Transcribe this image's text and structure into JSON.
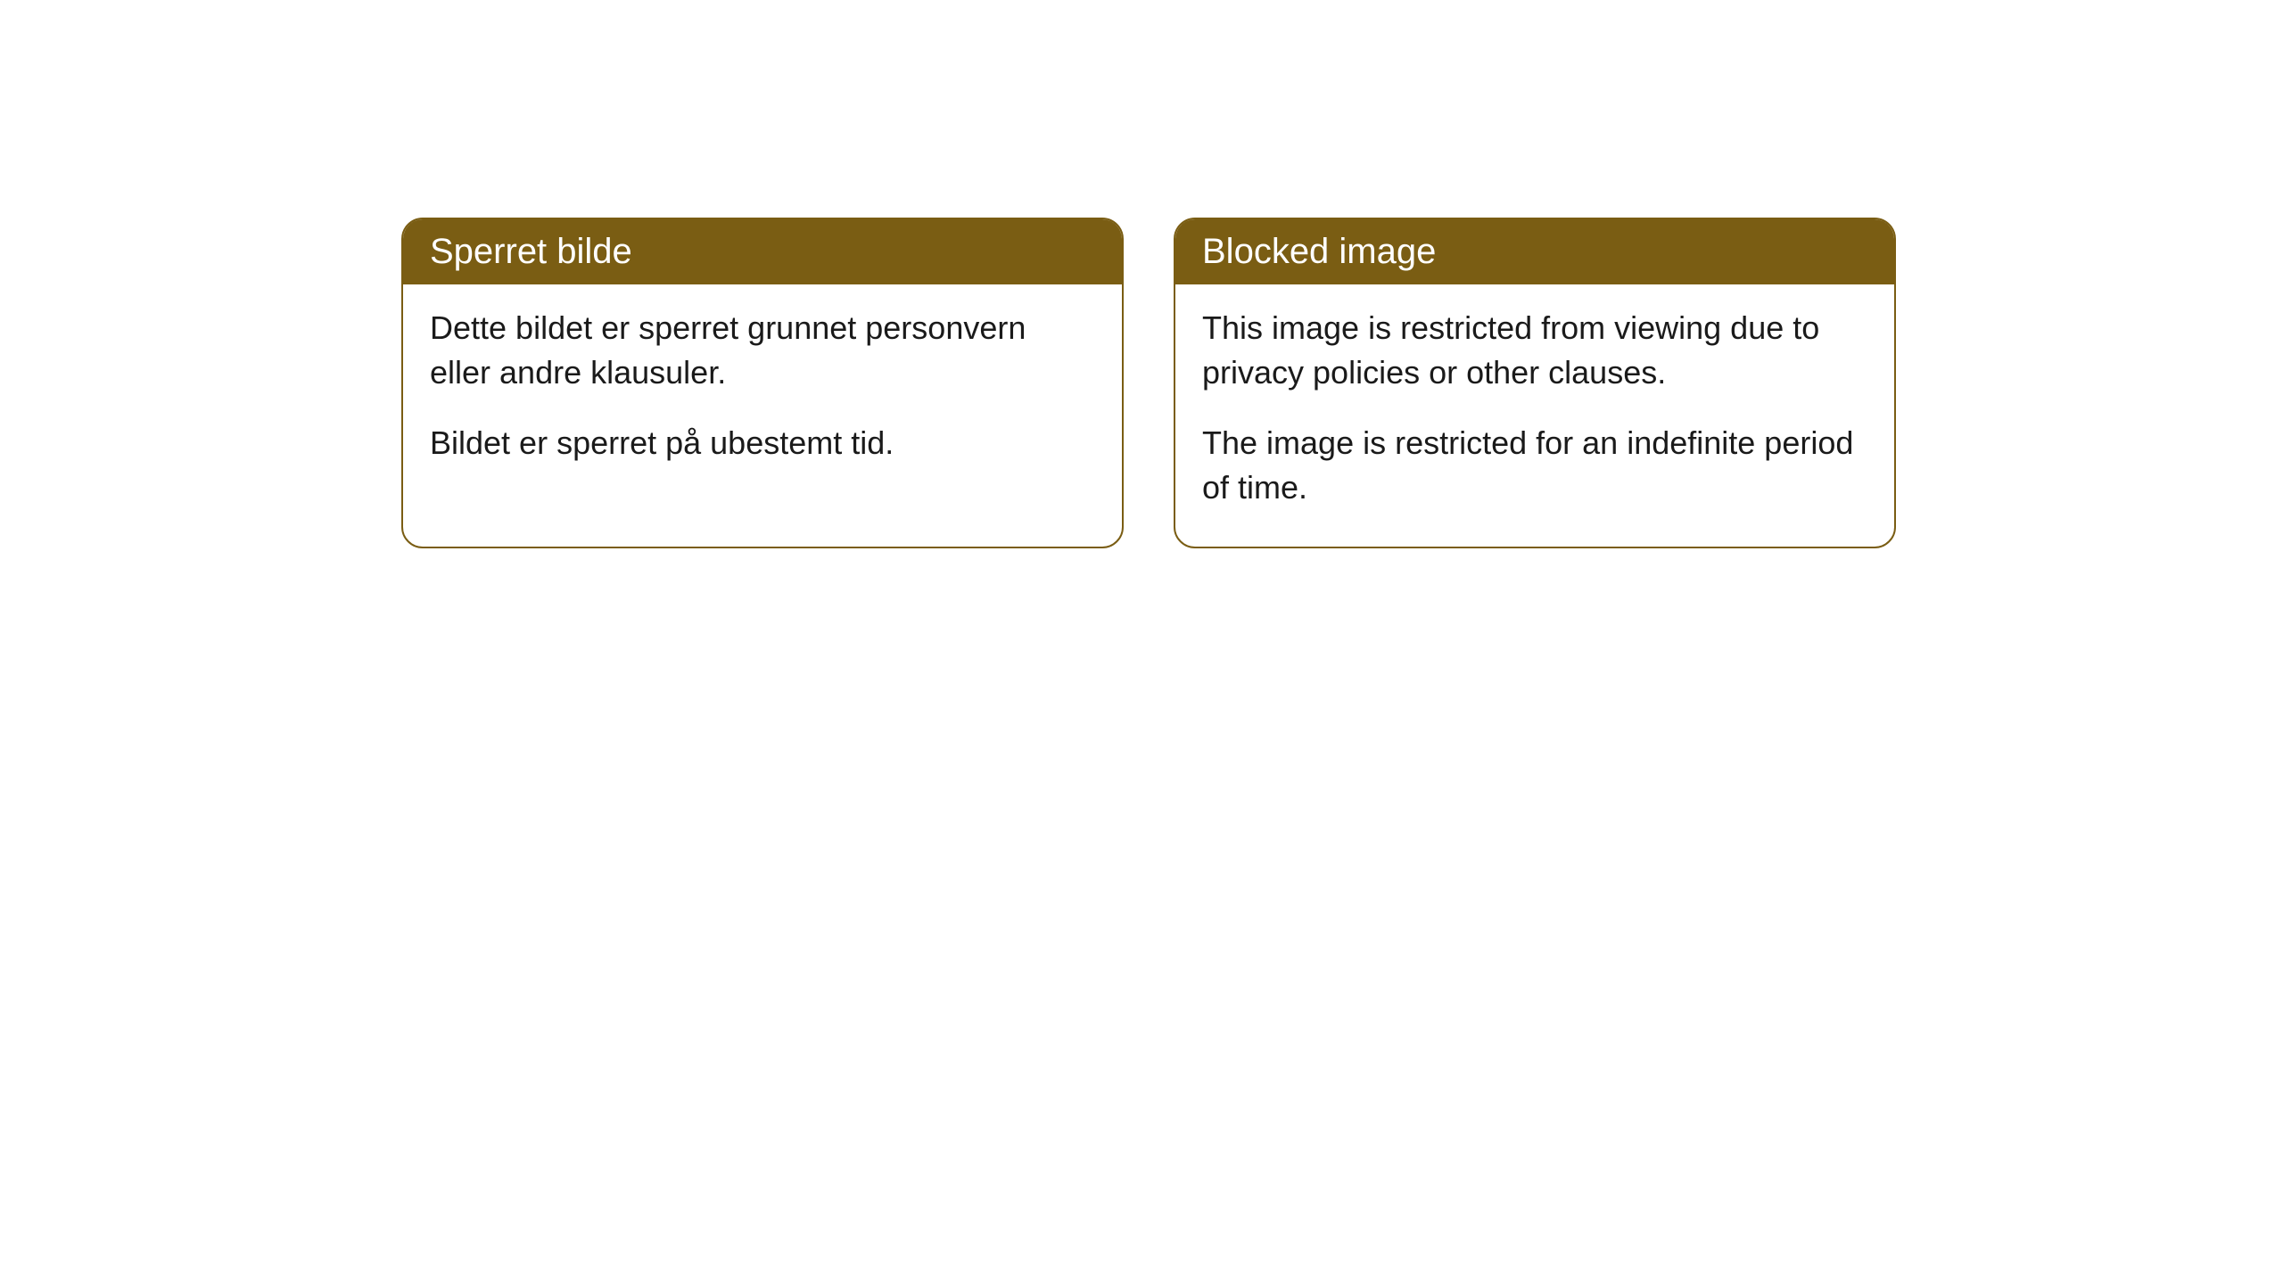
{
  "cards": [
    {
      "title": "Sperret bilde",
      "paragraph1": "Dette bildet er sperret grunnet personvern eller andre klausuler.",
      "paragraph2": "Bildet er sperret på ubestemt tid."
    },
    {
      "title": "Blocked image",
      "paragraph1": "This image is restricted from viewing due to privacy policies or other clauses.",
      "paragraph2": "The image is restricted for an indefinite period of time."
    }
  ],
  "style": {
    "header_background": "#7a5d13",
    "header_text_color": "#ffffff",
    "border_color": "#7a5d13",
    "body_background": "#ffffff",
    "body_text_color": "#1a1a1a",
    "border_radius": 24,
    "header_fontsize": 40,
    "body_fontsize": 36
  }
}
